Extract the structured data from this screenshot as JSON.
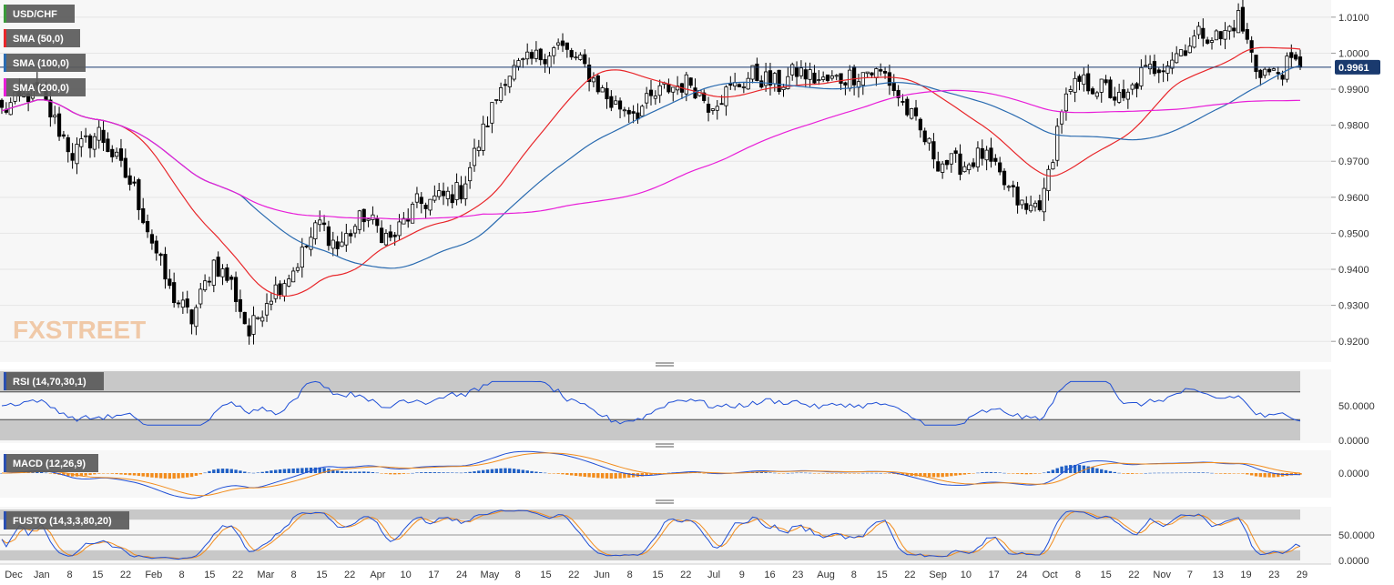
{
  "chart_data": {
    "type": "candlestick",
    "symbol": "USD/CHF",
    "last_price": "0.9961",
    "colors": {
      "up": "#ffffff",
      "down": "#000000",
      "sma50": "#e8262a",
      "sma100": "#2a6bb0",
      "sma200": "#e81ed8",
      "rsi": "#1f4fd6",
      "macd": "#1f4fd6",
      "signal": "#f28c1c",
      "hist_pos": "#1f5fc4",
      "hist_neg": "#f28c1c"
    },
    "legend": [
      {
        "label": "USD/CHF",
        "swatch": "#3a9a3a"
      },
      {
        "label": "SMA (50,0)",
        "swatch": "#e8262a"
      },
      {
        "label": "SMA (100,0)",
        "swatch": "#2a6bb0"
      },
      {
        "label": "SMA (200,0)",
        "swatch": "#e81ed8"
      }
    ],
    "price_axis": {
      "min": 0.915,
      "max": 1.0135,
      "ticks": [
        "1.0100",
        "1.0000",
        "0.9900",
        "0.9800",
        "0.9700",
        "0.9600",
        "0.9500",
        "0.9400",
        "0.9300",
        "0.9200"
      ]
    },
    "x_labels": [
      "Dec",
      "Jan",
      "8",
      "15",
      "22",
      "Feb",
      "8",
      "15",
      "22",
      "Mar",
      "8",
      "15",
      "22",
      "Apr",
      "10",
      "17",
      "24",
      "May",
      "8",
      "15",
      "22",
      "Jun",
      "8",
      "15",
      "22",
      "Jul",
      "9",
      "16",
      "23",
      "Aug",
      "8",
      "15",
      "22",
      "Sep",
      "10",
      "17",
      "24",
      "Oct",
      "8",
      "15",
      "22",
      "Nov",
      "7",
      "13",
      "19",
      "23",
      "29"
    ],
    "close_anchors": [
      [
        0,
        0.984
      ],
      [
        8,
        0.99
      ],
      [
        16,
        0.972
      ],
      [
        22,
        0.978
      ],
      [
        30,
        0.962
      ],
      [
        38,
        0.934
      ],
      [
        43,
        0.926
      ],
      [
        48,
        0.942
      ],
      [
        52,
        0.936
      ],
      [
        56,
        0.922
      ],
      [
        60,
        0.932
      ],
      [
        66,
        0.94
      ],
      [
        72,
        0.953
      ],
      [
        76,
        0.946
      ],
      [
        82,
        0.955
      ],
      [
        88,
        0.948
      ],
      [
        94,
        0.958
      ],
      [
        100,
        0.96
      ],
      [
        104,
        0.962
      ],
      [
        108,
        0.975
      ],
      [
        114,
        0.994
      ],
      [
        120,
        0.998
      ],
      [
        126,
        1.002
      ],
      [
        132,
        0.996
      ],
      [
        138,
        0.986
      ],
      [
        144,
        0.984
      ],
      [
        150,
        0.99
      ],
      [
        156,
        0.992
      ],
      [
        160,
        0.986
      ],
      [
        164,
        0.989
      ],
      [
        170,
        0.994
      ],
      [
        176,
        0.991
      ],
      [
        180,
        0.995
      ],
      [
        186,
        0.992
      ],
      [
        190,
        0.993
      ],
      [
        196,
        0.995
      ],
      [
        200,
        0.994
      ],
      [
        206,
        0.982
      ],
      [
        212,
        0.97
      ],
      [
        218,
        0.969
      ],
      [
        222,
        0.972
      ],
      [
        228,
        0.962
      ],
      [
        232,
        0.956
      ],
      [
        236,
        0.96
      ],
      [
        240,
        0.985
      ],
      [
        244,
        0.992
      ],
      [
        250,
        0.99
      ],
      [
        254,
        0.986
      ],
      [
        258,
        0.994
      ],
      [
        264,
        0.998
      ],
      [
        268,
        1.002
      ],
      [
        272,
        1.006
      ],
      [
        276,
        1.004
      ],
      [
        280,
        1.01
      ],
      [
        284,
        0.996
      ],
      [
        288,
        0.994
      ],
      [
        292,
        0.997
      ],
      [
        294,
        0.9961
      ]
    ],
    "panels": [
      {
        "label": "RSI (14,70,30,1)",
        "ticks": [
          "50.0000",
          "0.0000"
        ]
      },
      {
        "label": "MACD (12,26,9)",
        "ticks": [
          "0.0000"
        ]
      },
      {
        "label": "FUSTO (14,3,3,80,20)",
        "ticks": [
          "50.0000",
          "0.0000"
        ]
      }
    ],
    "watermark": "FXSTREET"
  }
}
